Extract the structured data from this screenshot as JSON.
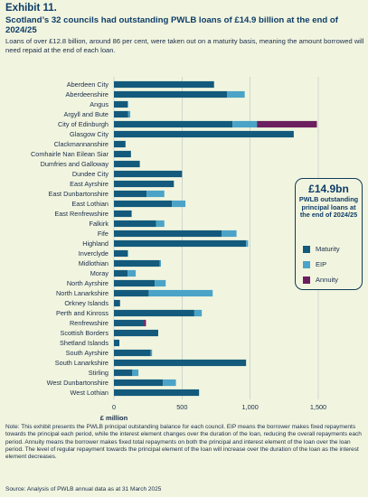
{
  "header": {
    "exhibit": "Exhibit 11.",
    "title": "Scotland’s 32 councils had outstanding PWLB loans of £14.9 billion at the end of 2024/25",
    "subtitle": "Loans of over £12.8 billion, around 86 per cent, were taken out on a maturity basis, meaning the amount borrowed will need repaid at the end of each loan."
  },
  "legend": {
    "total": "£14.9bn",
    "description": "PWLB outstanding principal loans at the end of 2024/25",
    "items": [
      {
        "label": "Maturity",
        "color": "#145a7c"
      },
      {
        "label": "EIP",
        "color": "#4ba3c7"
      },
      {
        "label": "Annuity",
        "color": "#6b1f5e"
      }
    ]
  },
  "chart_data": {
    "type": "bar",
    "orientation": "horizontal",
    "stacked": true,
    "categories": [
      "Aberdeen City",
      "Aberdeenshire",
      "Angus",
      "Argyll and Bute",
      "City of Edinburgh",
      "Glasgow City",
      "Clackmannanshire",
      "Comhairle Nan Eilean Siar",
      "Dumfries and Galloway",
      "Dundee City",
      "East Ayrshire",
      "East Dunbartonshire",
      "East Lothian",
      "East Renfrewshire",
      "Falkirk",
      "Fife",
      "Highland",
      "Inverclyde",
      "Midlothian",
      "Moray",
      "North Ayrshire",
      "North Lanarkshire",
      "Orkney Islands",
      "Perth and Kinross",
      "Renfrewshire",
      "Scottish Borders",
      "Shetland Islands",
      "South Ayrshire",
      "South Lanarkshire",
      "Stirling",
      "West Dunbartonshire",
      "West Lothian"
    ],
    "series": [
      {
        "name": "Maturity",
        "color": "#145a7c",
        "values": [
          735,
          830,
          100,
          105,
          870,
          1320,
          85,
          125,
          190,
          500,
          440,
          240,
          425,
          130,
          310,
          790,
          970,
          100,
          335,
          100,
          300,
          255,
          45,
          590,
          220,
          325,
          40,
          270,
          970,
          135,
          360,
          625
        ]
      },
      {
        "name": "EIP",
        "color": "#4ba3c7",
        "values": [
          0,
          130,
          5,
          15,
          180,
          0,
          0,
          0,
          0,
          0,
          0,
          130,
          100,
          0,
          60,
          110,
          15,
          5,
          10,
          60,
          80,
          470,
          0,
          55,
          0,
          0,
          0,
          10,
          0,
          45,
          95,
          0
        ]
      },
      {
        "name": "Annuity",
        "color": "#6b1f5e",
        "values": [
          0,
          0,
          0,
          0,
          440,
          0,
          0,
          0,
          0,
          0,
          0,
          0,
          0,
          0,
          0,
          0,
          0,
          0,
          0,
          0,
          0,
          0,
          0,
          0,
          15,
          0,
          0,
          0,
          0,
          0,
          0,
          0
        ]
      }
    ],
    "xlim": [
      0,
      1500
    ],
    "xticks": [
      0,
      500,
      1000,
      1500
    ],
    "xtick_labels": [
      "0",
      "500",
      "1,000",
      "1,500"
    ],
    "xlabel": "£ million",
    "grid": true,
    "legend_position": "right"
  },
  "note": "Note: This exhibit presents the PWLB principal outstanding balance for each council. EIP means the borrower makes fixed repayments towards the principal each period, while the interest element changes over the duration of the loan, reducing the overall repayments each period. Annuity means the borrower makes fixed total repayments on both the principal and interest element of the loan over the loan period. The level of regular repayment towards the principal element of the loan will increase over the duration of the loan as the interest element decreases.",
  "source": "Source: Analysis of PWLB annual data as at 31 March 2025"
}
